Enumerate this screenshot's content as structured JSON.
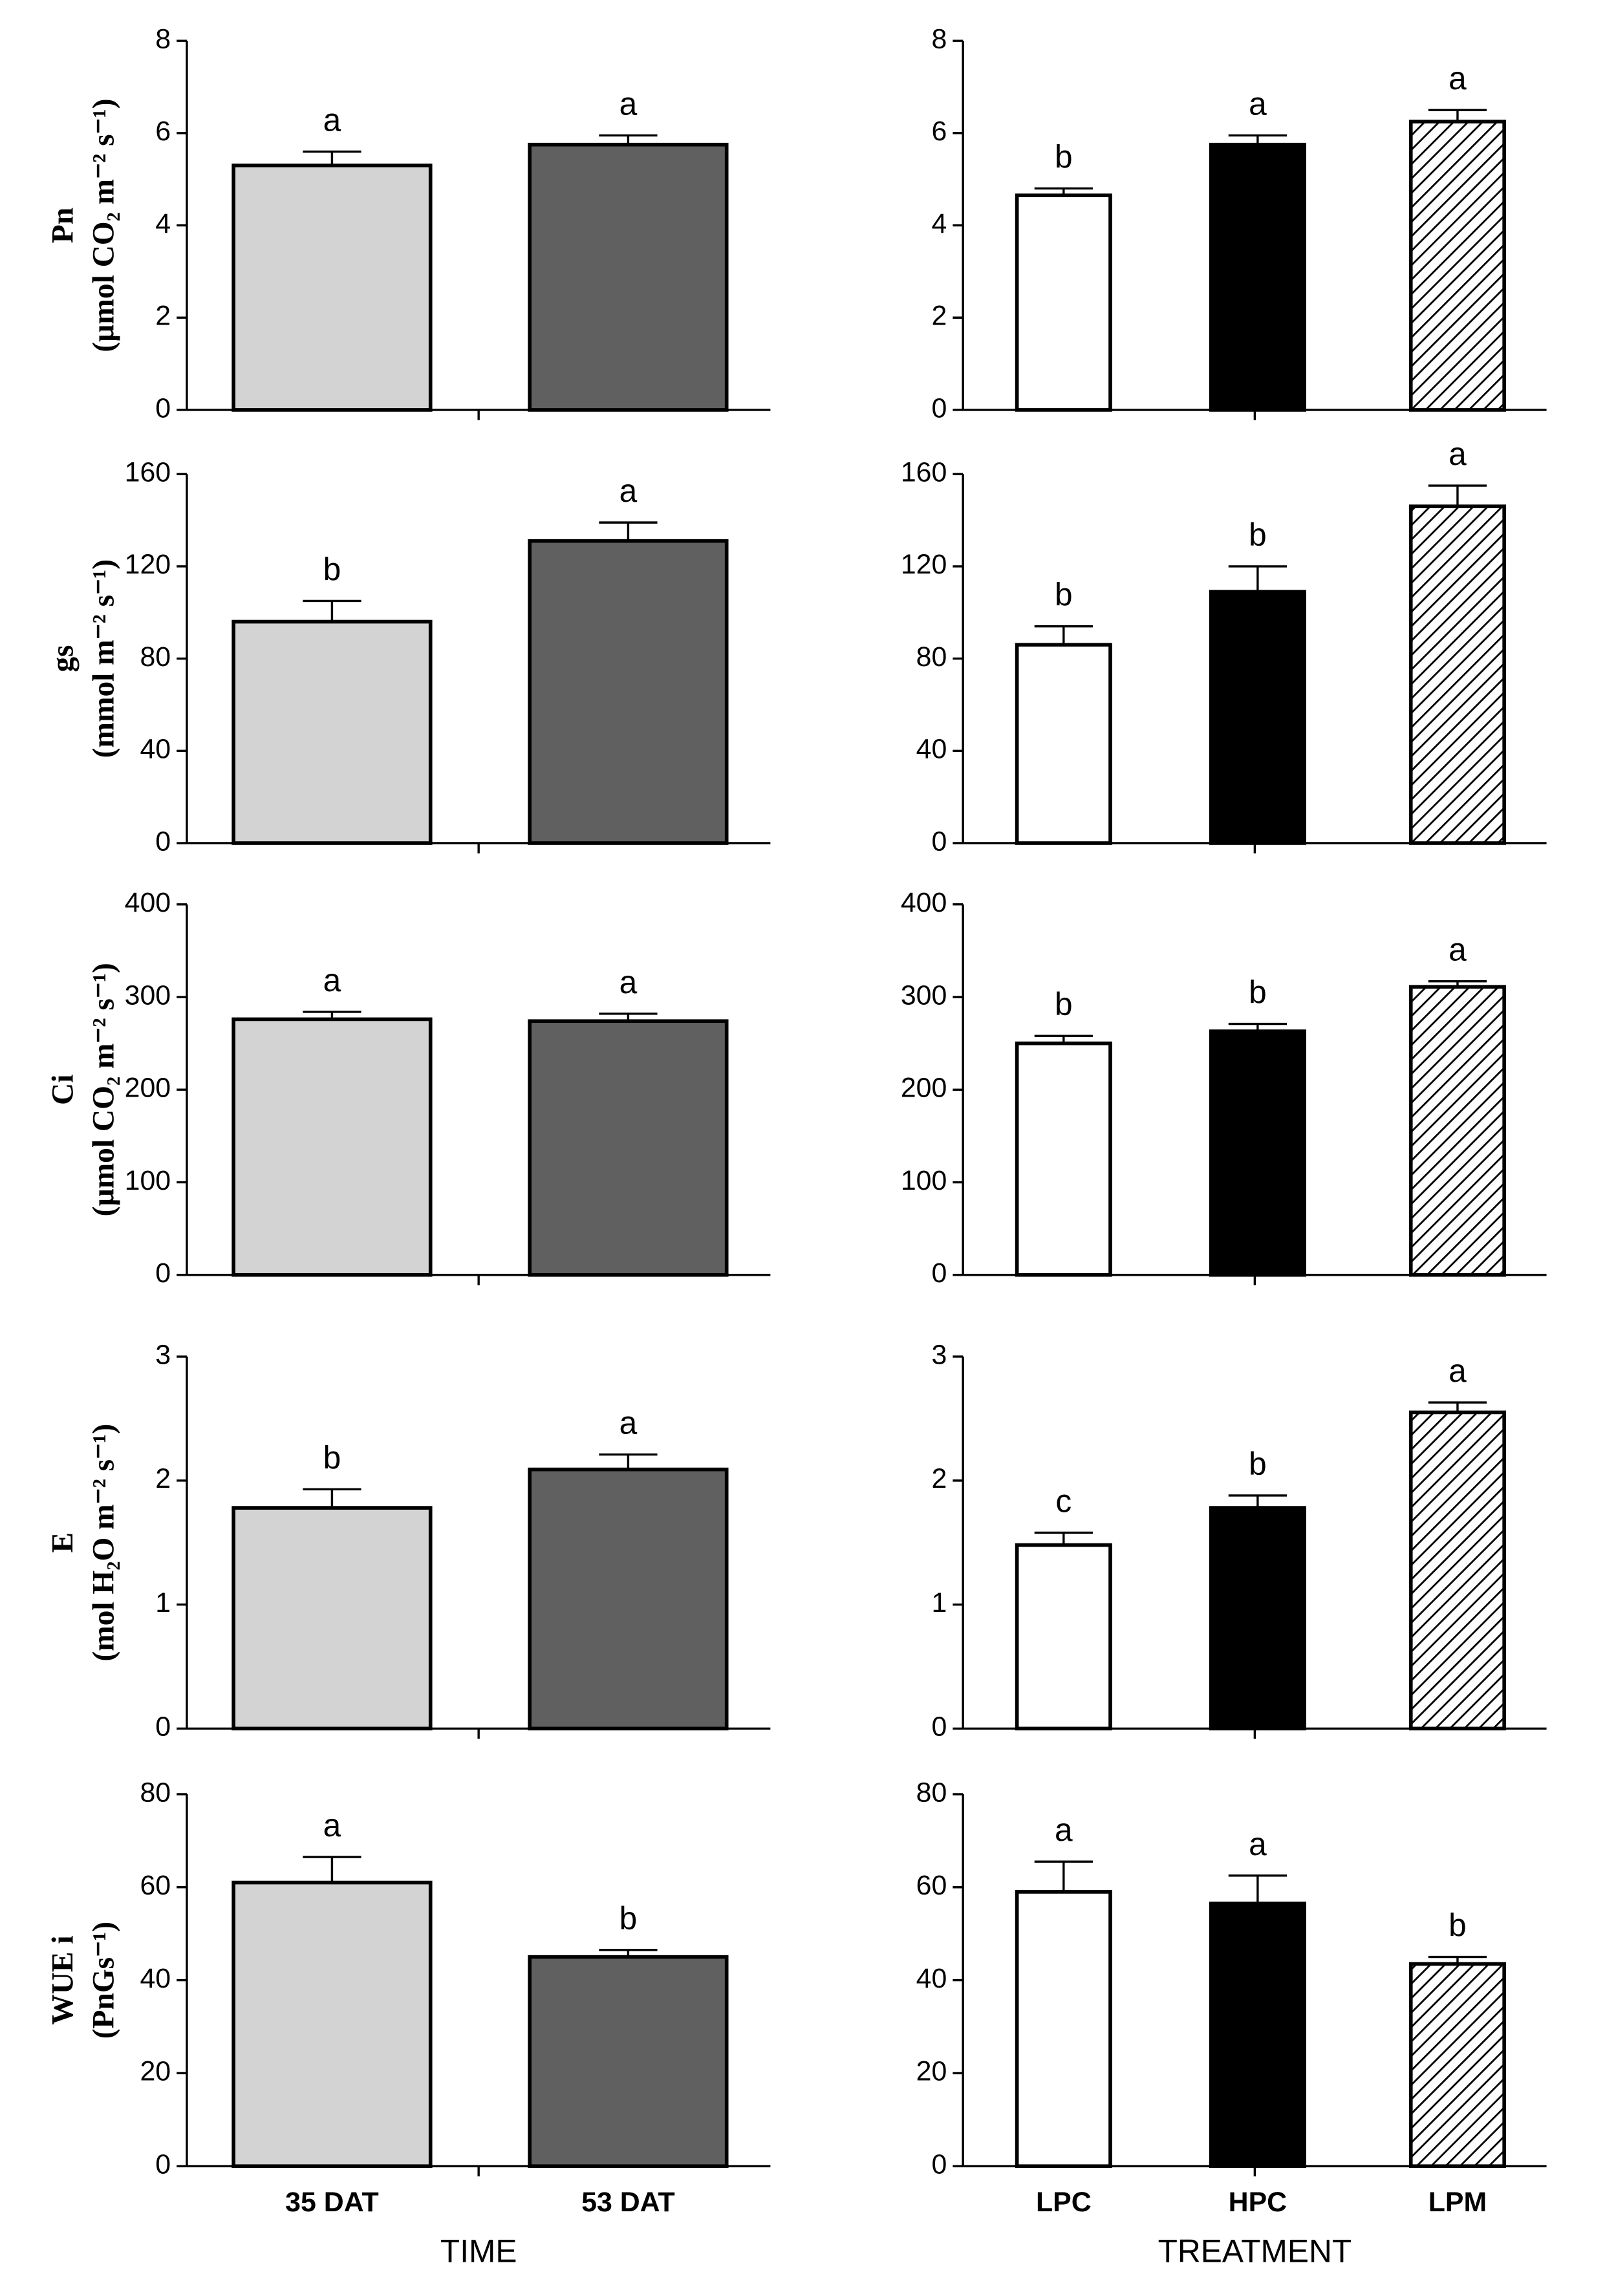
{
  "chart_data": [
    {
      "type": "bar",
      "ylabel": [
        "Pn",
        "(µmol CO₂ m⁻² s⁻¹)"
      ],
      "categories": [
        null,
        null
      ],
      "values": [
        5.3,
        5.75
      ],
      "errors": [
        0.3,
        0.2
      ],
      "annotations": [
        "a",
        "a"
      ],
      "colors": [
        "#d3d3d3",
        "#606060"
      ],
      "hatch": [
        false,
        false
      ],
      "ylim": [
        0,
        8
      ],
      "yticks": [
        0,
        2,
        4,
        6,
        8
      ]
    },
    {
      "type": "bar",
      "categories": [
        null,
        null,
        null
      ],
      "values": [
        4.65,
        5.75,
        6.25
      ],
      "errors": [
        0.15,
        0.2,
        0.25
      ],
      "annotations": [
        "b",
        "a",
        "a"
      ],
      "colors": [
        "#ffffff",
        "#000000",
        "#ffffff"
      ],
      "hatch": [
        false,
        false,
        true
      ],
      "ylim": [
        0,
        8
      ],
      "yticks": [
        0,
        2,
        4,
        6,
        8
      ]
    },
    {
      "type": "bar",
      "ylabel": [
        "gs",
        "(mmol m⁻² s⁻¹)"
      ],
      "categories": [
        null,
        null
      ],
      "values": [
        96,
        131
      ],
      "errors": [
        9,
        8
      ],
      "annotations": [
        "b",
        "a"
      ],
      "colors": [
        "#d3d3d3",
        "#606060"
      ],
      "hatch": [
        false,
        false
      ],
      "ylim": [
        0,
        160
      ],
      "yticks": [
        0,
        40,
        80,
        120,
        160
      ]
    },
    {
      "type": "bar",
      "categories": [
        null,
        null,
        null
      ],
      "values": [
        86,
        109,
        146
      ],
      "errors": [
        8,
        11,
        9
      ],
      "annotations": [
        "b",
        "b",
        "a"
      ],
      "colors": [
        "#ffffff",
        "#000000",
        "#ffffff"
      ],
      "hatch": [
        false,
        false,
        true
      ],
      "ylim": [
        0,
        160
      ],
      "yticks": [
        0,
        40,
        80,
        120,
        160
      ]
    },
    {
      "type": "bar",
      "ylabel": [
        "Ci",
        "(µmol CO₂ m⁻² s⁻¹)"
      ],
      "categories": [
        null,
        null
      ],
      "values": [
        276,
        274
      ],
      "errors": [
        8,
        8
      ],
      "annotations": [
        "a",
        "a"
      ],
      "colors": [
        "#d3d3d3",
        "#606060"
      ],
      "hatch": [
        false,
        false
      ],
      "ylim": [
        0,
        400
      ],
      "yticks": [
        0,
        100,
        200,
        300,
        400
      ]
    },
    {
      "type": "bar",
      "categories": [
        null,
        null,
        null
      ],
      "values": [
        250,
        263,
        311
      ],
      "errors": [
        8,
        8,
        6
      ],
      "annotations": [
        "b",
        "b",
        "a"
      ],
      "colors": [
        "#ffffff",
        "#000000",
        "#ffffff"
      ],
      "hatch": [
        false,
        false,
        true
      ],
      "ylim": [
        0,
        400
      ],
      "yticks": [
        0,
        100,
        200,
        300,
        400
      ]
    },
    {
      "type": "bar",
      "ylabel": [
        "E",
        "(mol H₂O m⁻² s⁻¹)"
      ],
      "categories": [
        null,
        null
      ],
      "values": [
        1.78,
        2.09
      ],
      "errors": [
        0.15,
        0.12
      ],
      "annotations": [
        "b",
        "a"
      ],
      "colors": [
        "#d3d3d3",
        "#606060"
      ],
      "hatch": [
        false,
        false
      ],
      "ylim": [
        0,
        3
      ],
      "yticks": [
        0,
        1,
        2,
        3
      ]
    },
    {
      "type": "bar",
      "categories": [
        null,
        null,
        null
      ],
      "values": [
        1.48,
        1.78,
        2.55
      ],
      "errors": [
        0.1,
        0.1,
        0.08
      ],
      "annotations": [
        "c",
        "b",
        "a"
      ],
      "colors": [
        "#ffffff",
        "#000000",
        "#ffffff"
      ],
      "hatch": [
        false,
        false,
        true
      ],
      "ylim": [
        0,
        3
      ],
      "yticks": [
        0,
        1,
        2,
        3
      ]
    },
    {
      "type": "bar",
      "ylabel": [
        "WUE i",
        "(PnGs⁻¹)"
      ],
      "xlabel": "TIME",
      "categories": [
        "35 DAT",
        "53 DAT"
      ],
      "values": [
        61,
        45
      ],
      "errors": [
        5.5,
        1.5
      ],
      "annotations": [
        "a",
        "b"
      ],
      "colors": [
        "#d3d3d3",
        "#606060"
      ],
      "hatch": [
        false,
        false
      ],
      "ylim": [
        0,
        80
      ],
      "yticks": [
        0,
        20,
        40,
        60,
        80
      ]
    },
    {
      "type": "bar",
      "xlabel": "TREATMENT",
      "categories": [
        "LPC",
        "HPC",
        "LPM"
      ],
      "values": [
        59,
        56.5,
        43.5
      ],
      "errors": [
        6.5,
        6,
        1.5
      ],
      "annotations": [
        "a",
        "a",
        "b"
      ],
      "colors": [
        "#ffffff",
        "#000000",
        "#ffffff"
      ],
      "hatch": [
        false,
        false,
        true
      ],
      "ylim": [
        0,
        80
      ],
      "yticks": [
        0,
        20,
        40,
        60,
        80
      ]
    }
  ]
}
